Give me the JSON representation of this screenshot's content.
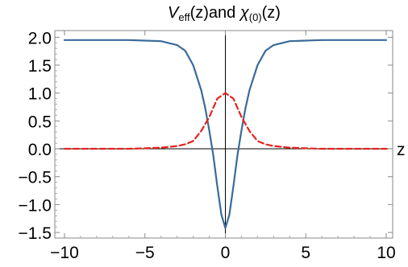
{
  "chart_data": {
    "type": "line",
    "title_parts": {
      "v": "V",
      "eff": "eff",
      "zand": "(z)and ",
      "chi": "χ",
      "zero": "(0)",
      "z": "(z)"
    },
    "xlabel": "z",
    "xlim": [
      -10.6,
      10.4
    ],
    "ylim": [
      -1.6,
      2.12
    ],
    "x_ticks": [
      -10,
      -5,
      0,
      5,
      10
    ],
    "x_tick_labels": [
      "−10",
      "−5",
      "0",
      "5",
      "10"
    ],
    "y_ticks": [
      2.0,
      1.5,
      1.0,
      0.5,
      0.0,
      -0.5,
      -1.0,
      -1.5
    ],
    "y_tick_labels": [
      "2.0",
      "1.5",
      "1.0",
      "0.5",
      "0.0",
      "−0.5",
      "−1.0",
      "−1.5"
    ],
    "grid": false,
    "series": [
      {
        "style": "solid",
        "color": "#3a6a9b",
        "x": [
          -10,
          -6,
          -5,
          -4,
          -3,
          -2.5,
          -2,
          -1.5,
          -1.25,
          -1,
          -0.75,
          -0.5,
          -0.25,
          0,
          0.25,
          0.5,
          0.75,
          1,
          1.25,
          1.5,
          2,
          2.5,
          3,
          4,
          5,
          6,
          10
        ],
        "y": [
          1.95,
          1.95,
          1.94,
          1.93,
          1.86,
          1.76,
          1.5,
          1.05,
          0.73,
          0.33,
          -0.12,
          -0.67,
          -1.18,
          -1.42,
          -1.18,
          -0.67,
          -0.12,
          0.33,
          0.73,
          1.05,
          1.5,
          1.76,
          1.86,
          1.93,
          1.94,
          1.95,
          1.95
        ]
      },
      {
        "style": "dashed",
        "color": "#e4231d",
        "x": [
          -10,
          -6,
          -5,
          -4,
          -3,
          -2.5,
          -2,
          -1.5,
          -1,
          -0.5,
          0,
          0.5,
          1,
          1.5,
          2,
          2.5,
          3,
          4,
          5,
          6,
          10
        ],
        "y": [
          0.0,
          0.0,
          0.01,
          0.02,
          0.05,
          0.08,
          0.14,
          0.32,
          0.57,
          0.9,
          1.0,
          0.9,
          0.57,
          0.32,
          0.14,
          0.08,
          0.05,
          0.02,
          0.01,
          0.0,
          0.0
        ]
      }
    ]
  }
}
